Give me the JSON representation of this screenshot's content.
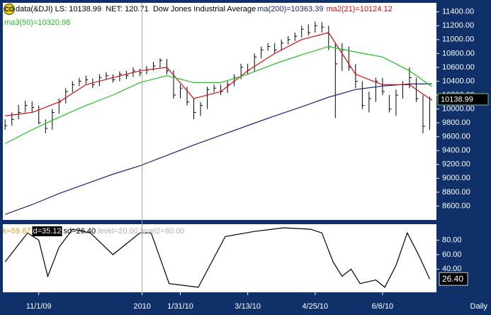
{
  "chart_data": [
    {
      "type": "ohlc",
      "icon": "CO",
      "header": "data(&DJI) LS: 10138.99  NET: 120.71  Dow Jones Industrial Average",
      "color": "#000000",
      "x": [
        0,
        3,
        6,
        9,
        12,
        15,
        18,
        21,
        24,
        27,
        30,
        33,
        36,
        39,
        42,
        45,
        48,
        51,
        54,
        57,
        60,
        63,
        66,
        69,
        72,
        75,
        78,
        81,
        84,
        87,
        90,
        93,
        96,
        99,
        102,
        105,
        108,
        111,
        114,
        117,
        120,
        123,
        126,
        129,
        132,
        135,
        138,
        141,
        144,
        147,
        150,
        153,
        156,
        159,
        162,
        165,
        168,
        171,
        174,
        177,
        180,
        183,
        186,
        189
      ],
      "high": [
        9850,
        9950,
        10060,
        10120,
        10110,
        10050,
        9850,
        10000,
        10150,
        10300,
        10400,
        10450,
        10480,
        10440,
        10500,
        10530,
        10500,
        10540,
        10550,
        10600,
        10580,
        10620,
        10680,
        10730,
        10720,
        10560,
        10350,
        10320,
        10150,
        10100,
        10320,
        10350,
        10350,
        10400,
        10500,
        10650,
        10650,
        10800,
        10900,
        10950,
        10950,
        11000,
        11050,
        11100,
        11200,
        11220,
        11260,
        11250,
        11200,
        10950,
        10950,
        10900,
        10650,
        10400,
        10250,
        10450,
        10450,
        10200,
        10280,
        10400,
        10600,
        10450,
        10200,
        10180
      ],
      "low": [
        9700,
        9760,
        9850,
        9950,
        9950,
        9780,
        9650,
        9700,
        9930,
        10080,
        10240,
        10330,
        10360,
        10300,
        10330,
        10420,
        10380,
        10400,
        10430,
        10460,
        10470,
        10500,
        10550,
        10600,
        10500,
        10150,
        10150,
        10050,
        9850,
        9900,
        10000,
        10240,
        10200,
        10230,
        10330,
        10430,
        10500,
        10540,
        10730,
        10840,
        10800,
        10840,
        10930,
        10980,
        11030,
        11060,
        11100,
        11100,
        10850,
        9870,
        10550,
        10550,
        10300,
        10000,
        9950,
        10100,
        10200,
        9950,
        9900,
        10150,
        10300,
        10100,
        9650,
        9700
      ],
      "close": [
        9760,
        9850,
        9950,
        10050,
        10020,
        9800,
        9720,
        9950,
        10100,
        10250,
        10350,
        10400,
        10420,
        10350,
        10450,
        10480,
        10420,
        10500,
        10480,
        10550,
        10520,
        10560,
        10620,
        10700,
        10550,
        10200,
        10300,
        10100,
        9950,
        10050,
        10280,
        10300,
        10250,
        10350,
        10450,
        10600,
        10560,
        10750,
        10850,
        10900,
        10850,
        10950,
        11000,
        11050,
        11150,
        11100,
        11200,
        11180,
        10900,
        10650,
        10850,
        10600,
        10400,
        10050,
        10150,
        10400,
        10250,
        10000,
        10200,
        10350,
        10450,
        10150,
        9750,
        10138.99
      ],
      "series": [
        {
          "name": "ma(200)=10363.39",
          "color": "#1a237e",
          "x": [
            0,
            12,
            24,
            36,
            48,
            60,
            72,
            84,
            96,
            108,
            120,
            132,
            144,
            156,
            168,
            180,
            190
          ],
          "values": [
            8480,
            8620,
            8780,
            8920,
            9060,
            9180,
            9330,
            9480,
            9620,
            9760,
            9900,
            10030,
            10170,
            10280,
            10330,
            10360,
            10363.39
          ]
        },
        {
          "name": "ma2(21)=10124.12",
          "color": "#d01010",
          "x": [
            0,
            12,
            24,
            36,
            48,
            60,
            72,
            84,
            96,
            108,
            120,
            132,
            144,
            156,
            168,
            180,
            190
          ],
          "values": [
            9900,
            9950,
            10100,
            10350,
            10450,
            10550,
            10600,
            10150,
            10250,
            10550,
            10800,
            11000,
            11100,
            10500,
            10350,
            10350,
            10124.12
          ]
        },
        {
          "name": "ma3(50)=10320.98",
          "color": "#22c022",
          "x": [
            0,
            12,
            24,
            36,
            48,
            60,
            72,
            84,
            96,
            108,
            120,
            132,
            144,
            156,
            168,
            180,
            190
          ],
          "values": [
            9500,
            9700,
            9880,
            10050,
            10200,
            10380,
            10480,
            10380,
            10380,
            10500,
            10650,
            10780,
            10900,
            10820,
            10750,
            10550,
            10320.98
          ]
        }
      ],
      "xlim": [
        -1,
        192
      ],
      "ylim": [
        8400,
        11530
      ],
      "yticks": [
        {
          "value": 8600,
          "label": "8600.00"
        },
        {
          "value": 8800,
          "label": "8800.00"
        },
        {
          "value": 9000,
          "label": "9000.00"
        },
        {
          "value": 9200,
          "label": "9200.00"
        },
        {
          "value": 9400,
          "label": "9400.00"
        },
        {
          "value": 9600,
          "label": "9600.00"
        },
        {
          "value": 9800,
          "label": "9800.00"
        },
        {
          "value": 10000,
          "label": "10000.00"
        },
        {
          "value": 10200,
          "label": "10200.00"
        },
        {
          "value": 10400,
          "label": "10400.00"
        },
        {
          "value": 10600,
          "label": "10600.00"
        },
        {
          "value": 10800,
          "label": "10800.00"
        },
        {
          "value": 11000,
          "label": "11000.00"
        },
        {
          "value": 11200,
          "label": "11200.00"
        },
        {
          "value": 11400,
          "label": "11400.00"
        }
      ]
    },
    {
      "type": "line",
      "labels": [
        {
          "text": "k=59.67",
          "color": "#e0a020"
        },
        {
          "text": "d=35.12",
          "color": "#ffffff",
          "background": "#000000"
        },
        {
          "text": "sd=26.40",
          "color": "#000000"
        },
        {
          "text": "level=20.00",
          "color": "#b0b0b0"
        },
        {
          "text": "level2=80.00",
          "color": "#b0b0b0"
        }
      ],
      "series": [
        {
          "color": "#000000",
          "x": [
            0,
            10,
            15,
            19,
            24,
            30,
            38,
            48,
            54,
            60,
            65,
            73,
            86,
            92,
            98,
            111,
            124,
            136,
            141,
            146,
            150,
            154,
            158,
            165,
            169,
            174,
            179,
            184,
            189
          ],
          "values": [
            50,
            90,
            80,
            30,
            70,
            95,
            90,
            60,
            75,
            90,
            90,
            20,
            15,
            50,
            85,
            92,
            97,
            95,
            90,
            50,
            30,
            40,
            20,
            25,
            15,
            45,
            90,
            60,
            26.4
          ],
          "value_labels": [
            null,
            null,
            null,
            null,
            null,
            null,
            null,
            null,
            null,
            null,
            null,
            null,
            null,
            null,
            null,
            null,
            null,
            null,
            null,
            null,
            null,
            null,
            null,
            null,
            null,
            null,
            null,
            null,
            "26.40"
          ]
        }
      ],
      "xlim": [
        -1,
        192
      ],
      "ylim": [
        8,
        102
      ],
      "yticks": [
        {
          "value": 40,
          "label": "40.00"
        },
        {
          "value": 60,
          "label": "60.00"
        },
        {
          "value": 80,
          "label": "80.00"
        }
      ],
      "xticks": [
        {
          "value": 15,
          "label": "11/1/09"
        },
        {
          "value": 61,
          "label": "2010",
          "separator": true
        },
        {
          "value": 78,
          "label": "1/31/10"
        },
        {
          "value": 108,
          "label": "3/13/10"
        },
        {
          "value": 138,
          "label": "4/25/10"
        },
        {
          "value": 168,
          "label": "6/6/10"
        }
      ],
      "interval": "Daily"
    }
  ]
}
